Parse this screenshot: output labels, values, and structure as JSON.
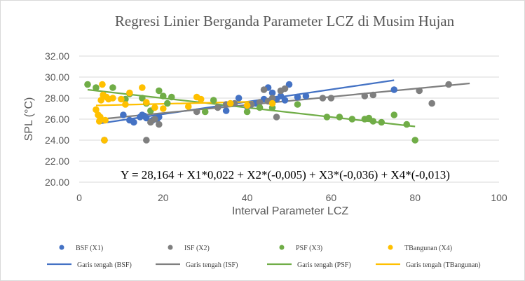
{
  "chart_data": {
    "type": "scatter",
    "title": "Regresi Linier Berganda Parameter LCZ di Musim Hujan",
    "xlabel": "Interval Parameter LCZ",
    "ylabel": "SPL (°C)",
    "xlim": [
      0,
      100
    ],
    "ylim": [
      20,
      32
    ],
    "x_ticks": [
      "0",
      "20",
      "40",
      "60",
      "80",
      "100"
    ],
    "y_ticks": [
      "20.00",
      "22.00",
      "24.00",
      "26.00",
      "28.00",
      "30.00",
      "32.00"
    ],
    "grid": true,
    "annotation": "Y = 28,164 + X1*0,022 + X2*(-0,005) + X3*(-0,036) + X4*(-0,013)",
    "legend_position": "bottom",
    "series": [
      {
        "name": "BSF (X1)",
        "color": "#4472C4",
        "points": [
          [
            6,
            24.0
          ],
          [
            10.5,
            26.4
          ],
          [
            12,
            25.9
          ],
          [
            13,
            25.7
          ],
          [
            14.5,
            26.2
          ],
          [
            15,
            26.4
          ],
          [
            15.5,
            26.3
          ],
          [
            16,
            26.1
          ],
          [
            17.5,
            25.9
          ],
          [
            18.5,
            26.0
          ],
          [
            19,
            26.2
          ],
          [
            35,
            26.8
          ],
          [
            38,
            28.0
          ],
          [
            40,
            27.2
          ],
          [
            41,
            27.4
          ],
          [
            42,
            27.5
          ],
          [
            44,
            27.9
          ],
          [
            45,
            29.0
          ],
          [
            46,
            28.5
          ],
          [
            47,
            27.9
          ],
          [
            48,
            28.2
          ],
          [
            49,
            27.8
          ],
          [
            50,
            29.3
          ],
          [
            52,
            28.1
          ],
          [
            54,
            28.2
          ],
          [
            75,
            28.8
          ]
        ]
      },
      {
        "name": "ISF (X2)",
        "color": "#7F7F7F",
        "points": [
          [
            6,
            24.0
          ],
          [
            16,
            24.0
          ],
          [
            17,
            25.7
          ],
          [
            18,
            26.0
          ],
          [
            19,
            25.5
          ],
          [
            28,
            26.7
          ],
          [
            33,
            27.1
          ],
          [
            35,
            27.4
          ],
          [
            37,
            27.5
          ],
          [
            41,
            27.4
          ],
          [
            43,
            27.6
          ],
          [
            44,
            28.8
          ],
          [
            45,
            27.7
          ],
          [
            46,
            28.0
          ],
          [
            47,
            26.2
          ],
          [
            48,
            28.7
          ],
          [
            49,
            28.9
          ],
          [
            58,
            28.0
          ],
          [
            60,
            28.0
          ],
          [
            68,
            28.2
          ],
          [
            70,
            28.3
          ],
          [
            81,
            28.7
          ],
          [
            84,
            27.5
          ],
          [
            88,
            29.3
          ]
        ]
      },
      {
        "name": "PSF (X3)",
        "color": "#70AD47",
        "points": [
          [
            2,
            29.3
          ],
          [
            4,
            29.0
          ],
          [
            8,
            29.0
          ],
          [
            11,
            27.9
          ],
          [
            12,
            28.4
          ],
          [
            15,
            28.0
          ],
          [
            16,
            27.5
          ],
          [
            17,
            26.8
          ],
          [
            19,
            28.7
          ],
          [
            20,
            28.2
          ],
          [
            21,
            27.5
          ],
          [
            22,
            28.1
          ],
          [
            30,
            26.7
          ],
          [
            32,
            27.8
          ],
          [
            40,
            26.7
          ],
          [
            43,
            27.1
          ],
          [
            46,
            27.1
          ],
          [
            52,
            27.4
          ],
          [
            59,
            26.2
          ],
          [
            62,
            26.2
          ],
          [
            65,
            26.0
          ],
          [
            68,
            26.0
          ],
          [
            69,
            26.1
          ],
          [
            70,
            25.8
          ],
          [
            72,
            25.7
          ],
          [
            75,
            26.4
          ],
          [
            78,
            25.5
          ],
          [
            80,
            24.0
          ]
        ]
      },
      {
        "name": "TBangunan (X4)",
        "color": "#FFC000",
        "points": [
          [
            4,
            26.9
          ],
          [
            4.5,
            26.4
          ],
          [
            4.8,
            25.8
          ],
          [
            5,
            26.2
          ],
          [
            5.2,
            27.8
          ],
          [
            5.5,
            29.3
          ],
          [
            5.7,
            28.3
          ],
          [
            6,
            24.0
          ],
          [
            6.2,
            25.9
          ],
          [
            6.5,
            28.1
          ],
          [
            7,
            27.9
          ],
          [
            8,
            28.0
          ],
          [
            10,
            27.9
          ],
          [
            11,
            27.4
          ],
          [
            12,
            28.5
          ],
          [
            15,
            29.0
          ],
          [
            16,
            27.6
          ],
          [
            18,
            27.1
          ],
          [
            20,
            27.0
          ],
          [
            26,
            27.2
          ],
          [
            28,
            28.1
          ],
          [
            29,
            27.9
          ],
          [
            36,
            27.5
          ],
          [
            40,
            27.3
          ],
          [
            46,
            27.5
          ]
        ]
      }
    ],
    "trendlines": [
      {
        "name": "Garis tengah (BSF)",
        "color": "#4472C4",
        "x": [
          5,
          75
        ],
        "y": [
          25.6,
          29.7
        ]
      },
      {
        "name": "Garis tengah (ISF)",
        "color": "#7F7F7F",
        "x": [
          5,
          93
        ],
        "y": [
          26.0,
          29.4
        ]
      },
      {
        "name": "Garis tengah (PSF)",
        "color": "#70AD47",
        "x": [
          2,
          80
        ],
        "y": [
          28.8,
          25.3
        ]
      },
      {
        "name": "Garis tengah (TBangunan)",
        "color": "#FFC000",
        "x": [
          4,
          46
        ],
        "y": [
          27.3,
          27.7
        ]
      }
    ]
  }
}
